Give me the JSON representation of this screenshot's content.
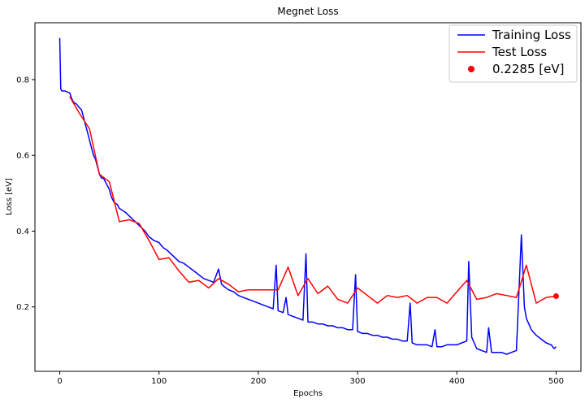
{
  "chart_data": {
    "type": "line",
    "title": "Megnet Loss",
    "xlabel": "Epochs",
    "ylabel": "Loss [eV]",
    "xlim": [
      -25,
      525
    ],
    "ylim": [
      0.03,
      0.95
    ],
    "x_ticks": [
      0,
      100,
      200,
      300,
      400,
      500
    ],
    "y_ticks": [
      0.2,
      0.4,
      0.6,
      0.8
    ],
    "grid": false,
    "legend_position": "top-right",
    "colors": {
      "training": "#0000ff",
      "test": "#ff0000",
      "marker": "#ff0000"
    },
    "series": [
      {
        "name": "Training Loss",
        "type": "line",
        "x": [
          0,
          1,
          2,
          5,
          10,
          12,
          14,
          17,
          20,
          22,
          24,
          26,
          28,
          30,
          32,
          34,
          36,
          38,
          40,
          42,
          44,
          46,
          48,
          50,
          52,
          55,
          58,
          60,
          63,
          66,
          70,
          74,
          78,
          82,
          86,
          90,
          95,
          100,
          103,
          105,
          108,
          112,
          116,
          120,
          125,
          130,
          135,
          140,
          145,
          150,
          155,
          160,
          163,
          165,
          170,
          175,
          180,
          185,
          190,
          195,
          200,
          205,
          210,
          215,
          218,
          220,
          225,
          228,
          230,
          235,
          240,
          245,
          248,
          250,
          255,
          260,
          265,
          270,
          275,
          280,
          285,
          290,
          295,
          298,
          300,
          305,
          310,
          315,
          320,
          325,
          330,
          335,
          340,
          345,
          350,
          353,
          355,
          360,
          365,
          370,
          375,
          378,
          380,
          385,
          390,
          395,
          400,
          405,
          410,
          412,
          415,
          420,
          425,
          430,
          432,
          435,
          440,
          445,
          450,
          455,
          460,
          465,
          468,
          470,
          475,
          480,
          485,
          490,
          495,
          498,
          500
        ],
        "y": [
          0.91,
          0.775,
          0.77,
          0.77,
          0.765,
          0.75,
          0.74,
          0.735,
          0.725,
          0.72,
          0.7,
          0.68,
          0.66,
          0.64,
          0.62,
          0.6,
          0.59,
          0.57,
          0.55,
          0.54,
          0.54,
          0.53,
          0.52,
          0.51,
          0.49,
          0.475,
          0.47,
          0.46,
          0.455,
          0.45,
          0.44,
          0.43,
          0.42,
          0.41,
          0.4,
          0.385,
          0.375,
          0.37,
          0.36,
          0.355,
          0.35,
          0.34,
          0.33,
          0.32,
          0.315,
          0.305,
          0.295,
          0.285,
          0.275,
          0.27,
          0.265,
          0.3,
          0.26,
          0.255,
          0.245,
          0.24,
          0.23,
          0.225,
          0.22,
          0.215,
          0.21,
          0.205,
          0.2,
          0.195,
          0.31,
          0.19,
          0.185,
          0.225,
          0.18,
          0.175,
          0.17,
          0.165,
          0.34,
          0.16,
          0.16,
          0.155,
          0.155,
          0.15,
          0.15,
          0.145,
          0.145,
          0.14,
          0.14,
          0.285,
          0.135,
          0.13,
          0.13,
          0.125,
          0.125,
          0.12,
          0.12,
          0.115,
          0.115,
          0.11,
          0.11,
          0.21,
          0.105,
          0.1,
          0.1,
          0.1,
          0.095,
          0.14,
          0.095,
          0.095,
          0.1,
          0.1,
          0.1,
          0.105,
          0.11,
          0.32,
          0.12,
          0.09,
          0.085,
          0.08,
          0.145,
          0.08,
          0.08,
          0.08,
          0.075,
          0.08,
          0.085,
          0.39,
          0.2,
          0.17,
          0.14,
          0.125,
          0.115,
          0.105,
          0.1,
          0.09,
          0.095
        ]
      },
      {
        "name": "Test Loss",
        "type": "line",
        "x": [
          10,
          20,
          30,
          40,
          50,
          60,
          70,
          80,
          90,
          100,
          110,
          120,
          130,
          140,
          150,
          160,
          170,
          180,
          190,
          200,
          210,
          220,
          230,
          240,
          250,
          260,
          270,
          280,
          290,
          300,
          310,
          320,
          330,
          340,
          350,
          360,
          370,
          380,
          390,
          400,
          410,
          420,
          430,
          440,
          450,
          460,
          470,
          480,
          490,
          500
        ],
        "y": [
          0.755,
          0.71,
          0.67,
          0.55,
          0.53,
          0.425,
          0.43,
          0.42,
          0.375,
          0.325,
          0.33,
          0.295,
          0.265,
          0.27,
          0.25,
          0.275,
          0.26,
          0.24,
          0.245,
          0.245,
          0.245,
          0.245,
          0.305,
          0.23,
          0.275,
          0.235,
          0.255,
          0.22,
          0.21,
          0.25,
          0.23,
          0.21,
          0.23,
          0.225,
          0.23,
          0.21,
          0.225,
          0.225,
          0.21,
          0.24,
          0.27,
          0.22,
          0.225,
          0.235,
          0.23,
          0.225,
          0.31,
          0.21,
          0.225,
          0.2285
        ]
      },
      {
        "name": "0.2285 [eV]",
        "type": "scatter",
        "x": [
          500
        ],
        "y": [
          0.2285
        ]
      }
    ]
  }
}
